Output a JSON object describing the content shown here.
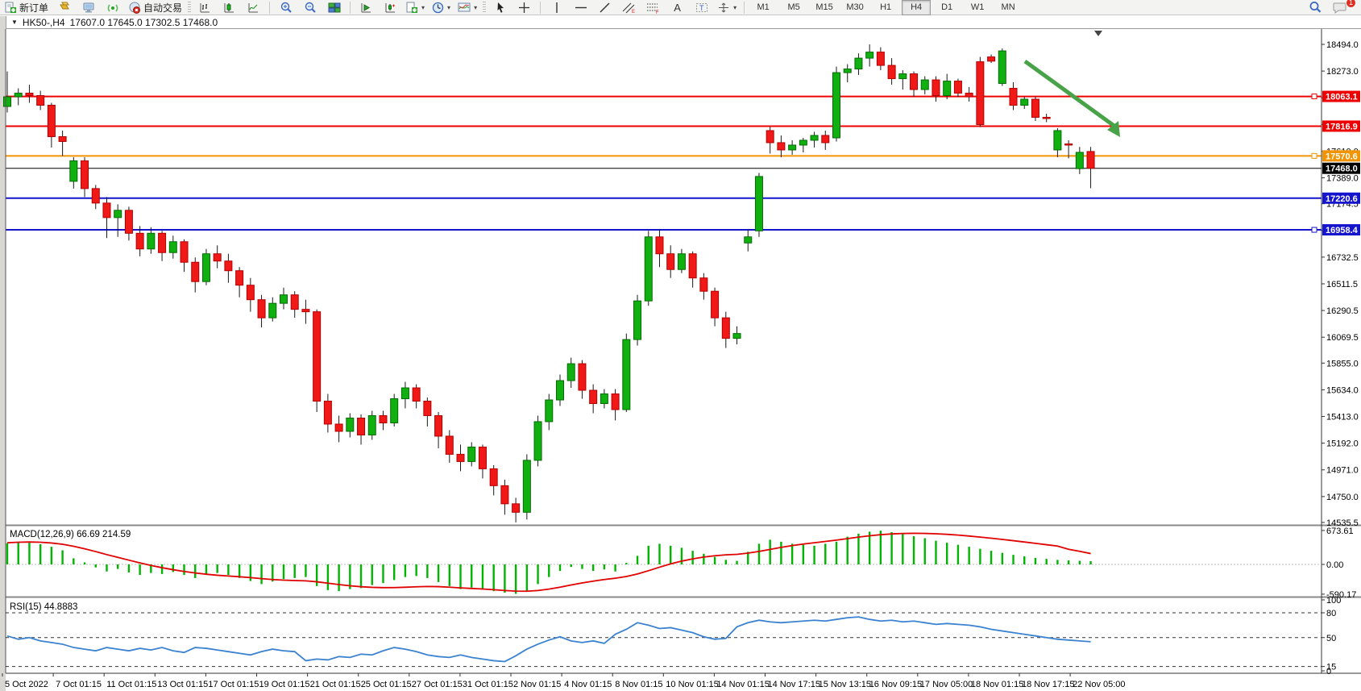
{
  "toolbar": {
    "new_order_label": "新订单",
    "autotrade_label": "自动交易",
    "timeframes": [
      "M1",
      "M5",
      "M15",
      "M30",
      "H1",
      "H4",
      "D1",
      "W1",
      "MN"
    ],
    "active_timeframe": "H4",
    "chat_badge": "1"
  },
  "chart_window": {
    "collapse_glyph": "▼",
    "title": "HK50-,H4",
    "ohlc_text": "17607.0 17645.0 17302.5 17468.0"
  },
  "colors": {
    "up": "#10b010",
    "up_border": "#056b05",
    "down": "#f11818",
    "down_border": "#b40000",
    "wick": "#1a1a1a",
    "level_red": "#ed0000",
    "level_orange": "#f29400",
    "level_blue": "#1515cd",
    "level_black": "#000000",
    "macd_hist": "#00b400",
    "macd_signal": "#e00000",
    "rsi_line": "#3b82d0",
    "arrow_green": "#48a348"
  },
  "chart_data": {
    "type": "candlestick",
    "symbol": "HK50-",
    "timeframe": "H4",
    "current_bar": {
      "open": 17607.0,
      "high": 17645.0,
      "low": 17302.5,
      "close": 17468.0
    },
    "price_axis_ticks": [
      "18494.0",
      "18273.0",
      "18052.0",
      "17831.0",
      "17610.0",
      "17389.0",
      "17174.5",
      "16953.5",
      "16732.5",
      "16511.5",
      "16290.5",
      "16069.5",
      "15855.0",
      "15634.0",
      "15413.0",
      "15192.0",
      "14971.0",
      "14750.0",
      "14535.5"
    ],
    "price_levels": [
      {
        "label": "18063.1",
        "value": 18063.1,
        "color_key": "level_red",
        "width": 2,
        "marker": true
      },
      {
        "label": "17816.9",
        "value": 17816.9,
        "color_key": "level_red",
        "width": 2,
        "marker": false
      },
      {
        "label": "17570.6",
        "value": 17570.6,
        "color_key": "level_orange",
        "width": 2,
        "marker": true
      },
      {
        "label": "17468.0",
        "value": 17468.0,
        "color_key": "level_black",
        "width": 1,
        "marker": false
      },
      {
        "label": "17220.6",
        "value": 17220.6,
        "color_key": "level_blue",
        "width": 2,
        "marker": false
      },
      {
        "label": "16958.4",
        "value": 16958.4,
        "color_key": "level_blue",
        "width": 2,
        "marker": true
      }
    ],
    "time_labels": [
      "5 Oct 2022",
      "7 Oct 01:15",
      "11 Oct 01:15",
      "13 Oct 01:15",
      "17 Oct 01:15",
      "19 Oct 01:15",
      "21 Oct 01:15",
      "25 Oct 01:15",
      "27 Oct 01:15",
      "31 Oct 01:15",
      "2 Nov 01:15",
      "4 Nov 01:15",
      "8 Nov 01:15",
      "10 Nov 01:15",
      "14 Nov 01:15",
      "14 Nov 17:15",
      "15 Nov 13:15",
      "16 Nov 09:15",
      "17 Nov 05:00",
      "18 Nov 01:15",
      "18 Nov 17:15",
      "22 Nov 05:00"
    ],
    "candles": [
      [
        17980,
        18270,
        17930,
        18060
      ],
      [
        18060,
        18130,
        17990,
        18090
      ],
      [
        18090,
        18160,
        18010,
        18070
      ],
      [
        18070,
        18110,
        17950,
        17990
      ],
      [
        17990,
        18010,
        17640,
        17730
      ],
      [
        17730,
        17780,
        17570,
        17690
      ],
      [
        17360,
        17560,
        17300,
        17530
      ],
      [
        17530,
        17560,
        17230,
        17300
      ],
      [
        17300,
        17330,
        17130,
        17180
      ],
      [
        17180,
        17230,
        16890,
        17060
      ],
      [
        17060,
        17170,
        16900,
        17120
      ],
      [
        17120,
        17150,
        16870,
        16930
      ],
      [
        16930,
        16990,
        16740,
        16800
      ],
      [
        16800,
        16980,
        16760,
        16930
      ],
      [
        16930,
        16950,
        16700,
        16770
      ],
      [
        16770,
        16910,
        16720,
        16860
      ],
      [
        16860,
        16880,
        16610,
        16690
      ],
      [
        16690,
        16730,
        16440,
        16530
      ],
      [
        16530,
        16800,
        16500,
        16760
      ],
      [
        16760,
        16830,
        16640,
        16700
      ],
      [
        16700,
        16760,
        16520,
        16620
      ],
      [
        16620,
        16650,
        16400,
        16500
      ],
      [
        16500,
        16560,
        16280,
        16380
      ],
      [
        16380,
        16420,
        16150,
        16230
      ],
      [
        16230,
        16400,
        16200,
        16350
      ],
      [
        16350,
        16480,
        16300,
        16420
      ],
      [
        16420,
        16450,
        16230,
        16300
      ],
      [
        16300,
        16380,
        16180,
        16280
      ],
      [
        16280,
        16300,
        15450,
        15540
      ],
      [
        15540,
        15600,
        15280,
        15350
      ],
      [
        15350,
        15420,
        15200,
        15290
      ],
      [
        15290,
        15440,
        15240,
        15400
      ],
      [
        15400,
        15430,
        15180,
        15260
      ],
      [
        15260,
        15460,
        15220,
        15420
      ],
      [
        15420,
        15460,
        15300,
        15360
      ],
      [
        15360,
        15600,
        15330,
        15560
      ],
      [
        15560,
        15700,
        15480,
        15650
      ],
      [
        15650,
        15680,
        15480,
        15540
      ],
      [
        15540,
        15570,
        15330,
        15420
      ],
      [
        15420,
        15450,
        15150,
        15250
      ],
      [
        15250,
        15300,
        15030,
        15100
      ],
      [
        15100,
        15180,
        14960,
        15040
      ],
      [
        15040,
        15200,
        15000,
        15160
      ],
      [
        15160,
        15180,
        14900,
        14980
      ],
      [
        14980,
        15010,
        14760,
        14840
      ],
      [
        14840,
        14890,
        14600,
        14690
      ],
      [
        14690,
        14740,
        14536,
        14620
      ],
      [
        14620,
        15100,
        14560,
        15050
      ],
      [
        15050,
        15420,
        15000,
        15370
      ],
      [
        15370,
        15600,
        15300,
        15550
      ],
      [
        15550,
        15760,
        15500,
        15710
      ],
      [
        15710,
        15900,
        15650,
        15850
      ],
      [
        15850,
        15880,
        15560,
        15630
      ],
      [
        15630,
        15680,
        15440,
        15520
      ],
      [
        15520,
        15640,
        15480,
        15600
      ],
      [
        15600,
        15640,
        15380,
        15470
      ],
      [
        15470,
        16100,
        15450,
        16050
      ],
      [
        16050,
        16420,
        16000,
        16370
      ],
      [
        16370,
        16950,
        16330,
        16900
      ],
      [
        16900,
        16960,
        16650,
        16760
      ],
      [
        16760,
        16830,
        16560,
        16630
      ],
      [
        16630,
        16800,
        16600,
        16760
      ],
      [
        16760,
        16780,
        16480,
        16560
      ],
      [
        16560,
        16600,
        16380,
        16450
      ],
      [
        16450,
        16480,
        16160,
        16230
      ],
      [
        16230,
        16280,
        15980,
        16060
      ],
      [
        16060,
        16160,
        16010,
        16100
      ],
      [
        16850,
        16960,
        16780,
        16900
      ],
      [
        16950,
        17430,
        16900,
        17400
      ],
      [
        17780,
        17810,
        17590,
        17680
      ],
      [
        17680,
        17740,
        17560,
        17620
      ],
      [
        17620,
        17700,
        17580,
        17660
      ],
      [
        17660,
        17720,
        17600,
        17700
      ],
      [
        17700,
        17770,
        17640,
        17740
      ],
      [
        17740,
        17780,
        17620,
        17680
      ],
      [
        17720,
        18310,
        17690,
        18260
      ],
      [
        18260,
        18330,
        18180,
        18290
      ],
      [
        18290,
        18420,
        18240,
        18380
      ],
      [
        18380,
        18494,
        18310,
        18430
      ],
      [
        18430,
        18470,
        18280,
        18320
      ],
      [
        18320,
        18380,
        18160,
        18210
      ],
      [
        18210,
        18280,
        18120,
        18250
      ],
      [
        18250,
        18270,
        18060,
        18120
      ],
      [
        18120,
        18230,
        18080,
        18200
      ],
      [
        18200,
        18230,
        18020,
        18070
      ],
      [
        18070,
        18250,
        18040,
        18190
      ],
      [
        18190,
        18210,
        18060,
        18090
      ],
      [
        18090,
        18140,
        18020,
        18060
      ],
      [
        18350,
        18390,
        17810,
        17830
      ],
      [
        18390,
        18410,
        18340,
        18355
      ],
      [
        18170,
        18460,
        18150,
        18440
      ],
      [
        18130,
        18180,
        17950,
        17990
      ],
      [
        17990,
        18060,
        17960,
        18040
      ],
      [
        18040,
        18060,
        17860,
        17890
      ],
      [
        17890,
        17920,
        17850,
        17880
      ],
      [
        17620,
        17800,
        17560,
        17780
      ],
      [
        17670,
        17700,
        17550,
        17660
      ],
      [
        17465,
        17645,
        17420,
        17600
      ],
      [
        17607,
        17645,
        17302.5,
        17468
      ]
    ],
    "macd": {
      "label": "MACD(12,26,9) 66.69 214.59",
      "axis_labels": [
        {
          "text": "673.61",
          "value": 673.61
        },
        {
          "text": "0.00",
          "value": 0
        },
        {
          "text": "-590.17",
          "value": -590.17
        }
      ],
      "histogram": [
        420,
        450,
        430,
        400,
        350,
        280,
        120,
        40,
        -60,
        -140,
        -90,
        -160,
        -210,
        -170,
        -190,
        -150,
        -210,
        -270,
        -190,
        -170,
        -210,
        -270,
        -330,
        -390,
        -340,
        -290,
        -270,
        -250,
        -430,
        -510,
        -530,
        -490,
        -470,
        -410,
        -370,
        -310,
        -250,
        -230,
        -270,
        -350,
        -430,
        -490,
        -460,
        -480,
        -530,
        -560,
        -585,
        -520,
        -390,
        -250,
        -130,
        -50,
        -90,
        -130,
        -100,
        -140,
        30,
        170,
        370,
        410,
        370,
        330,
        270,
        210,
        150,
        90,
        70,
        250,
        410,
        490,
        450,
        410,
        390,
        370,
        410,
        450,
        550,
        610,
        650,
        670,
        640,
        600,
        560,
        520,
        470,
        430,
        390,
        350,
        310,
        270,
        230,
        190,
        160,
        130,
        110,
        90,
        80,
        72,
        66
      ],
      "signal": [
        430,
        440,
        445,
        440,
        425,
        400,
        360,
        310,
        255,
        195,
        140,
        85,
        30,
        -20,
        -65,
        -105,
        -140,
        -170,
        -195,
        -215,
        -230,
        -245,
        -262,
        -282,
        -300,
        -312,
        -320,
        -326,
        -345,
        -372,
        -400,
        -424,
        -443,
        -455,
        -461,
        -460,
        -453,
        -444,
        -438,
        -441,
        -452,
        -466,
        -477,
        -488,
        -502,
        -518,
        -530,
        -532,
        -518,
        -490,
        -452,
        -408,
        -368,
        -332,
        -300,
        -274,
        -240,
        -190,
        -125,
        -55,
        10,
        65,
        110,
        146,
        172,
        190,
        200,
        224,
        258,
        298,
        338,
        374,
        404,
        430,
        456,
        482,
        512,
        542,
        568,
        590,
        605,
        614,
        617,
        615,
        608,
        597,
        582,
        563,
        542,
        520,
        496,
        471,
        445,
        418,
        391,
        364,
        300,
        260,
        215
      ]
    },
    "rsi": {
      "label": "RSI(15) 44.8883",
      "level_labels": [
        "100",
        "80",
        "50",
        "15",
        "0"
      ],
      "dashed_levels": [
        80,
        50,
        15
      ],
      "values": [
        52,
        48,
        50,
        46,
        44,
        42,
        38,
        36,
        34,
        38,
        36,
        34,
        37,
        35,
        38,
        34,
        32,
        38,
        37,
        35,
        33,
        31,
        29,
        33,
        36,
        34,
        33,
        22,
        24,
        23,
        27,
        26,
        30,
        29,
        34,
        38,
        36,
        33,
        29,
        27,
        26,
        29,
        26,
        24,
        22,
        21,
        28,
        36,
        42,
        47,
        51,
        46,
        44,
        46,
        43,
        54,
        60,
        68,
        65,
        61,
        62,
        59,
        56,
        51,
        48,
        49,
        63,
        68,
        71,
        69,
        68,
        69,
        70,
        71,
        70,
        72,
        74,
        75,
        72,
        70,
        71,
        69,
        70,
        68,
        66,
        67,
        66,
        65,
        63,
        60,
        58,
        56,
        54,
        52,
        50,
        48,
        47,
        46,
        45
      ]
    },
    "trend_arrow": {
      "from": [
        1272,
        76
      ],
      "to": [
        1390,
        162
      ],
      "color_key": "arrow_green"
    }
  }
}
